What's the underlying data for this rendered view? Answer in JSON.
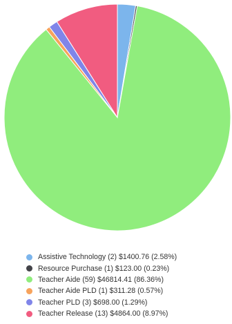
{
  "chart_data": {
    "type": "pie",
    "start_angle_deg": 0,
    "direction": "clockwise",
    "slice_border_color": "#ffffff",
    "legend_position": "bottom",
    "series": [
      {
        "name": "Assistive Technology",
        "count": 2,
        "value": 1400.76,
        "percent": 2.58,
        "color": "#7cb5ec",
        "label": "Assistive Technology (2) $1400.76 (2.58%)"
      },
      {
        "name": "Resource Purchase",
        "count": 1,
        "value": 123.0,
        "percent": 0.23,
        "color": "#434348",
        "label": "Resource Purchase (1) $123.00 (0.23%)"
      },
      {
        "name": "Teacher Aide",
        "count": 59,
        "value": 46814.41,
        "percent": 86.36,
        "color": "#90ed7d",
        "label": "Teacher Aide (59) $46814.41 (86.36%)"
      },
      {
        "name": "Teacher Aide PLD",
        "count": 1,
        "value": 311.28,
        "percent": 0.57,
        "color": "#f7a35c",
        "label": "Teacher Aide PLD (1) $311.28 (0.57%)"
      },
      {
        "name": "Teacher PLD",
        "count": 3,
        "value": 698.0,
        "percent": 1.29,
        "color": "#8085e9",
        "label": "Teacher PLD (3) $698.00 (1.29%)"
      },
      {
        "name": "Teacher Release",
        "count": 13,
        "value": 4864.0,
        "percent": 8.97,
        "color": "#f15c80",
        "label": "Teacher Release (13) $4864.00 (8.97%)"
      }
    ]
  }
}
